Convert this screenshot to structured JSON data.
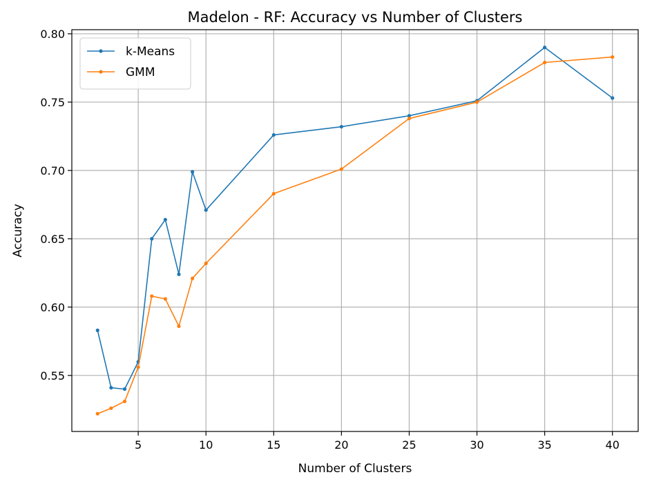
{
  "chart_data": {
    "type": "line",
    "title": "Madelon - RF: Accuracy vs Number of Clusters",
    "xlabel": "Number of Clusters",
    "ylabel": "Accuracy",
    "xlim": [
      0.1,
      41.9
    ],
    "ylim": [
      0.509,
      0.803
    ],
    "xticks": [
      5,
      10,
      15,
      20,
      25,
      30,
      35,
      40
    ],
    "xtick_labels": [
      "5",
      "10",
      "15",
      "20",
      "25",
      "30",
      "35",
      "40"
    ],
    "yticks": [
      0.55,
      0.6,
      0.65,
      0.7,
      0.75,
      0.8
    ],
    "ytick_labels": [
      "0.55",
      "0.60",
      "0.65",
      "0.70",
      "0.75",
      "0.80"
    ],
    "grid": true,
    "legend_position": "top-left",
    "x": [
      2,
      3,
      4,
      5,
      6,
      7,
      8,
      9,
      10,
      15,
      20,
      25,
      30,
      35,
      40
    ],
    "series": [
      {
        "name": "k-Means",
        "color": "#1f77b4",
        "values": [
          0.583,
          0.541,
          0.54,
          0.56,
          0.65,
          0.664,
          0.624,
          0.699,
          0.671,
          0.726,
          0.732,
          0.74,
          0.751,
          0.79,
          0.753
        ]
      },
      {
        "name": "GMM",
        "color": "#ff7f0e",
        "values": [
          0.522,
          0.526,
          0.531,
          0.556,
          0.608,
          0.606,
          0.586,
          0.621,
          0.632,
          0.683,
          0.701,
          0.738,
          0.75,
          0.779,
          0.783
        ]
      }
    ]
  }
}
